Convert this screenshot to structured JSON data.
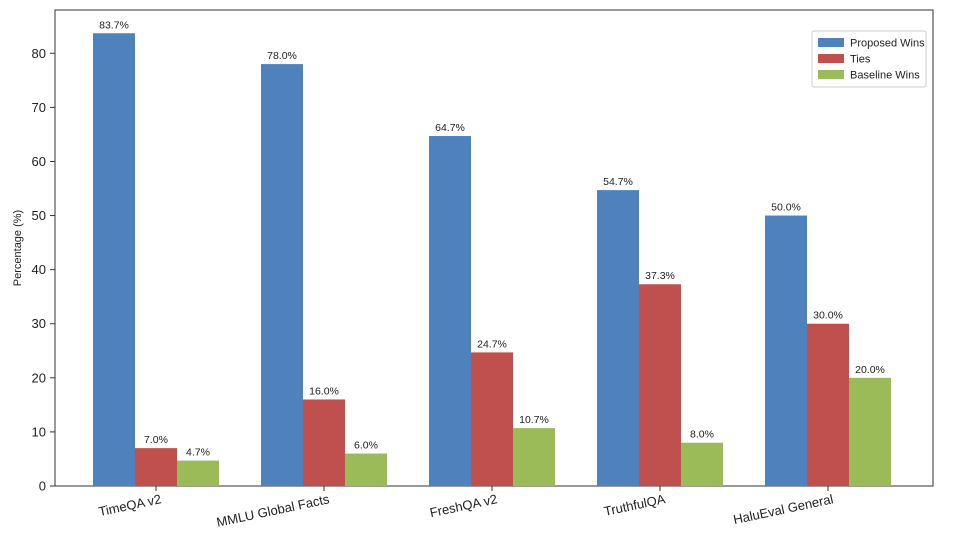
{
  "chart_data": {
    "type": "bar",
    "title": "",
    "xlabel": "",
    "ylabel": "Percentage (%)",
    "ylim": [
      0,
      88
    ],
    "yticks": [
      0,
      10,
      20,
      30,
      40,
      50,
      60,
      70,
      80
    ],
    "grid": false,
    "legend_position": "top-right",
    "categories": [
      "TimeQA v2",
      "MMLU Global Facts",
      "FreshQA v2",
      "TruthfulQA",
      "HaluEval General"
    ],
    "series": [
      {
        "name": "Proposed Wins",
        "color": "#4f81bd",
        "values": [
          83.7,
          78.0,
          64.7,
          54.7,
          50.0
        ],
        "labels": [
          "83.7%",
          "78.0%",
          "64.7%",
          "54.7%",
          "50.0%"
        ]
      },
      {
        "name": "Ties",
        "color": "#c0504d",
        "values": [
          7.0,
          16.0,
          24.7,
          37.3,
          30.0
        ],
        "labels": [
          "7.0%",
          "16.0%",
          "24.7%",
          "37.3%",
          "30.0%"
        ]
      },
      {
        "name": "Baseline Wins",
        "color": "#9bbb59",
        "values": [
          4.7,
          6.0,
          10.7,
          8.0,
          20.0
        ],
        "labels": [
          "4.7%",
          "6.0%",
          "10.7%",
          "8.0%",
          "20.0%"
        ]
      }
    ]
  }
}
